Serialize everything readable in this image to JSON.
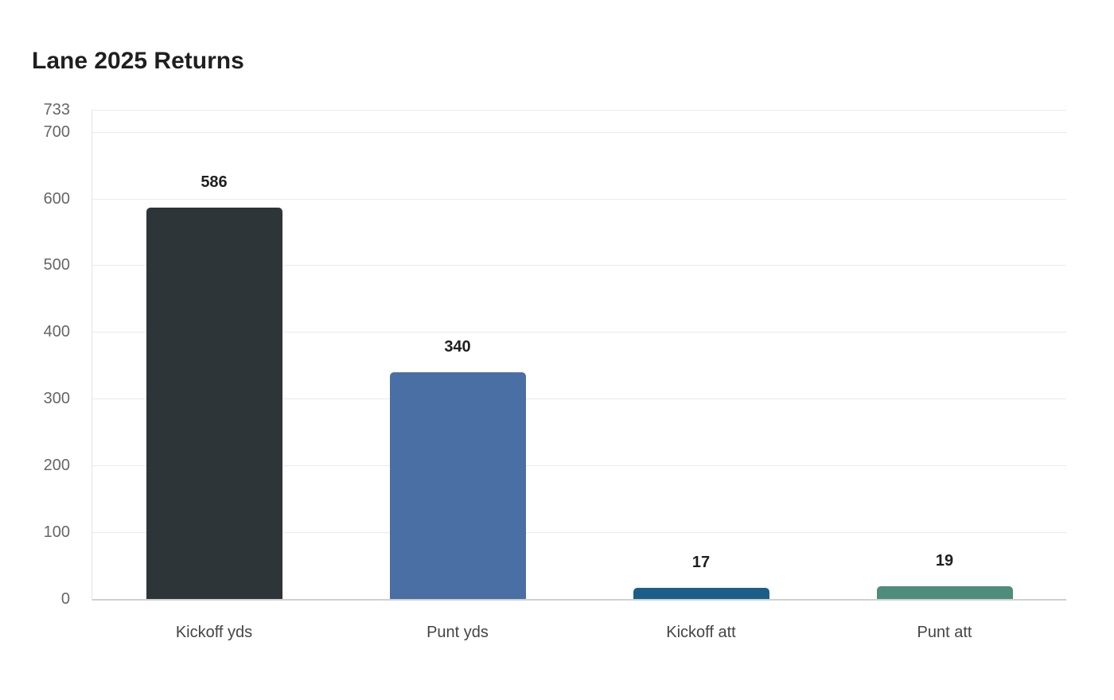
{
  "title": "Lane 2025 Returns",
  "y_ticks": [
    "0",
    "100",
    "200",
    "300",
    "400",
    "500",
    "600",
    "700",
    "733"
  ],
  "chart_data": {
    "type": "bar",
    "title": "Lane 2025 Returns",
    "categories": [
      "Kickoff yds",
      "Punt yds",
      "Kickoff att",
      "Punt att"
    ],
    "values": [
      586,
      340,
      17,
      19
    ],
    "colors": [
      "#2e3538",
      "#4a6fa5",
      "#1b5e8a",
      "#4f8c7b"
    ],
    "xlabel": "",
    "ylabel": "",
    "ylim": [
      0,
      733
    ],
    "yticks": [
      0,
      100,
      200,
      300,
      400,
      500,
      600,
      700,
      733
    ],
    "grid": true,
    "legend": "none",
    "data_labels": true
  }
}
